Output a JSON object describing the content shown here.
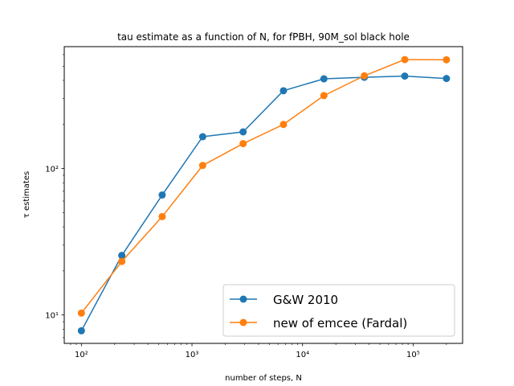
{
  "chart_data": {
    "type": "line",
    "title": "tau estimate as a function of N, for fPBH, 90M_sol black hole",
    "xlabel": "number of steps, N",
    "ylabel": "τ estimates",
    "xscale": "log",
    "yscale": "log",
    "xlim": [
      70,
      280000
    ],
    "ylim": [
      6.4,
      680
    ],
    "x_ticks": [
      100,
      1000,
      10000,
      100000
    ],
    "x_tick_labels": [
      "10²",
      "10³",
      "10⁴",
      "10⁵"
    ],
    "y_ticks": [
      10,
      100
    ],
    "y_tick_labels": [
      "10¹",
      "10²"
    ],
    "grid": false,
    "legend_position": "lower right",
    "series": [
      {
        "name": "G&W 2010",
        "color": "#1f77b4",
        "x": [
          100,
          232,
          538,
          1250,
          2900,
          6720,
          15600,
          36200,
          84000,
          200000
        ],
        "y": [
          7.8,
          25.5,
          66,
          165,
          178,
          340,
          410,
          420,
          428,
          412
        ]
      },
      {
        "name": "new of emcee (Fardal)",
        "color": "#ff7f0e",
        "x": [
          100,
          232,
          538,
          1250,
          2900,
          6720,
          15600,
          36200,
          84000,
          200000
        ],
        "y": [
          10.3,
          23.2,
          47,
          105,
          148,
          200,
          315,
          430,
          555,
          553
        ]
      }
    ]
  }
}
